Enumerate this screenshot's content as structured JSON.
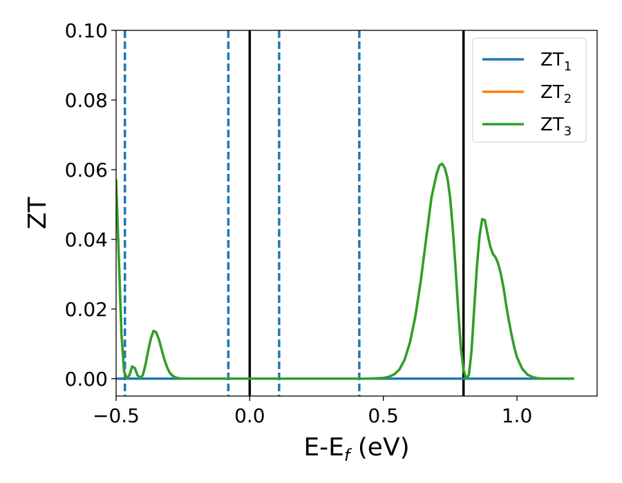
{
  "chart_data": {
    "type": "line",
    "xlabel": "E-E_f (eV)",
    "xlabel_parts": {
      "main": "E-E",
      "sub": "f",
      "suffix": " (eV)"
    },
    "ylabel": "ZT",
    "xlim": [
      -0.5,
      1.3
    ],
    "ylim": [
      -0.005,
      0.1
    ],
    "x_ticks": [
      -0.5,
      0.0,
      0.5,
      1.0
    ],
    "x_tick_labels": [
      "−0.5",
      "0.0",
      "0.5",
      "1.0"
    ],
    "y_ticks": [
      0.0,
      0.02,
      0.04,
      0.06,
      0.08,
      0.1
    ],
    "y_tick_labels": [
      "0.00",
      "0.02",
      "0.04",
      "0.06",
      "0.08",
      "0.10"
    ],
    "grid": false,
    "legend_position": "top-right",
    "series": [
      {
        "name": "ZT_1",
        "label_main": "ZT",
        "label_sub": "1",
        "color": "#1f77b4",
        "x": [
          -0.5,
          1.21
        ],
        "y": [
          0.0,
          0.0
        ]
      },
      {
        "name": "ZT_2",
        "label_main": "ZT",
        "label_sub": "2",
        "color": "#ff7f0e",
        "x": [
          -0.5,
          -0.49,
          -0.48,
          -0.47,
          -0.46,
          -0.45,
          -0.44,
          -0.43,
          -0.42,
          -0.41,
          -0.4,
          -0.39,
          -0.38,
          -0.37,
          -0.36,
          -0.35,
          -0.34,
          -0.33,
          -0.32,
          -0.31,
          -0.3,
          -0.29,
          -0.28,
          -0.27,
          -0.26,
          -0.25,
          -0.23,
          -0.2,
          -0.15,
          -0.1,
          0.0,
          0.1,
          0.2,
          0.3,
          0.4,
          0.45,
          0.5,
          0.52,
          0.54,
          0.56,
          0.58,
          0.6,
          0.62,
          0.64,
          0.66,
          0.68,
          0.7,
          0.71,
          0.72,
          0.73,
          0.74,
          0.75,
          0.76,
          0.77,
          0.78,
          0.79,
          0.8,
          0.81,
          0.82,
          0.83,
          0.84,
          0.85,
          0.86,
          0.87,
          0.88,
          0.89,
          0.9,
          0.91,
          0.92,
          0.93,
          0.94,
          0.95,
          0.96,
          0.97,
          0.98,
          0.99,
          1.0,
          1.02,
          1.04,
          1.06,
          1.08,
          1.1,
          1.12,
          1.14,
          1.16,
          1.18,
          1.2,
          1.21
        ],
        "y": [
          0.057,
          0.035,
          0.013,
          0.002,
          0.0,
          0.001,
          0.0035,
          0.003,
          0.001,
          0.0002,
          0.001,
          0.004,
          0.008,
          0.0115,
          0.0137,
          0.0133,
          0.0113,
          0.0085,
          0.0057,
          0.0034,
          0.0018,
          0.0009,
          0.0004,
          0.0002,
          0.0001,
          0.0,
          0.0,
          0.0,
          0.0,
          0.0,
          0.0,
          0.0,
          0.0,
          0.0,
          0.0,
          0.0,
          0.0002,
          0.0005,
          0.0012,
          0.0026,
          0.0055,
          0.0105,
          0.018,
          0.028,
          0.04,
          0.052,
          0.059,
          0.0612,
          0.0617,
          0.0605,
          0.0575,
          0.052,
          0.043,
          0.032,
          0.02,
          0.009,
          0.0025,
          0.0,
          0.001,
          0.008,
          0.02,
          0.032,
          0.041,
          0.0458,
          0.0455,
          0.0415,
          0.038,
          0.0358,
          0.0348,
          0.033,
          0.03,
          0.026,
          0.021,
          0.0165,
          0.0125,
          0.009,
          0.0062,
          0.0028,
          0.0011,
          0.0004,
          0.0001,
          0.0,
          0.0,
          0.0,
          0.0,
          0.0,
          0.0,
          0.0
        ]
      },
      {
        "name": "ZT_3",
        "label_main": "ZT",
        "label_sub": "3",
        "color": "#2ca02c",
        "x": [
          -0.5,
          -0.49,
          -0.48,
          -0.47,
          -0.46,
          -0.45,
          -0.44,
          -0.43,
          -0.42,
          -0.41,
          -0.4,
          -0.39,
          -0.38,
          -0.37,
          -0.36,
          -0.35,
          -0.34,
          -0.33,
          -0.32,
          -0.31,
          -0.3,
          -0.29,
          -0.28,
          -0.27,
          -0.26,
          -0.25,
          -0.23,
          -0.2,
          -0.15,
          -0.1,
          0.0,
          0.1,
          0.2,
          0.3,
          0.4,
          0.45,
          0.5,
          0.52,
          0.54,
          0.56,
          0.58,
          0.6,
          0.62,
          0.64,
          0.66,
          0.68,
          0.7,
          0.71,
          0.72,
          0.73,
          0.74,
          0.75,
          0.76,
          0.77,
          0.78,
          0.79,
          0.8,
          0.81,
          0.82,
          0.83,
          0.84,
          0.85,
          0.86,
          0.87,
          0.88,
          0.89,
          0.9,
          0.91,
          0.92,
          0.93,
          0.94,
          0.95,
          0.96,
          0.97,
          0.98,
          0.99,
          1.0,
          1.02,
          1.04,
          1.06,
          1.08,
          1.1,
          1.12,
          1.14,
          1.16,
          1.18,
          1.2,
          1.21
        ],
        "y": [
          0.057,
          0.035,
          0.013,
          0.002,
          0.0,
          0.001,
          0.0035,
          0.003,
          0.001,
          0.0002,
          0.001,
          0.004,
          0.008,
          0.0115,
          0.0137,
          0.0133,
          0.0113,
          0.0085,
          0.0057,
          0.0034,
          0.0018,
          0.0009,
          0.0004,
          0.0002,
          0.0001,
          0.0,
          0.0,
          0.0,
          0.0,
          0.0,
          0.0,
          0.0,
          0.0,
          0.0,
          0.0,
          0.0,
          0.0002,
          0.0005,
          0.0012,
          0.0026,
          0.0055,
          0.0105,
          0.018,
          0.028,
          0.04,
          0.052,
          0.059,
          0.0612,
          0.0617,
          0.0605,
          0.0575,
          0.052,
          0.043,
          0.032,
          0.02,
          0.009,
          0.0025,
          0.0,
          0.001,
          0.008,
          0.02,
          0.032,
          0.041,
          0.0458,
          0.0455,
          0.0415,
          0.038,
          0.0358,
          0.0348,
          0.033,
          0.03,
          0.026,
          0.021,
          0.0165,
          0.0125,
          0.009,
          0.0062,
          0.0028,
          0.0011,
          0.0004,
          0.0001,
          0.0,
          0.0,
          0.0,
          0.0,
          0.0,
          0.0,
          0.0
        ]
      }
    ],
    "vlines": [
      {
        "x": -0.467,
        "style": "dashed",
        "color": "#1f77b4"
      },
      {
        "x": -0.08,
        "style": "dashed",
        "color": "#1f77b4"
      },
      {
        "x": 0.0,
        "style": "solid",
        "color": "#000000"
      },
      {
        "x": 0.11,
        "style": "dashed",
        "color": "#1f77b4"
      },
      {
        "x": 0.41,
        "style": "dashed",
        "color": "#1f77b4"
      },
      {
        "x": 0.8,
        "style": "solid",
        "color": "#000000"
      }
    ]
  }
}
